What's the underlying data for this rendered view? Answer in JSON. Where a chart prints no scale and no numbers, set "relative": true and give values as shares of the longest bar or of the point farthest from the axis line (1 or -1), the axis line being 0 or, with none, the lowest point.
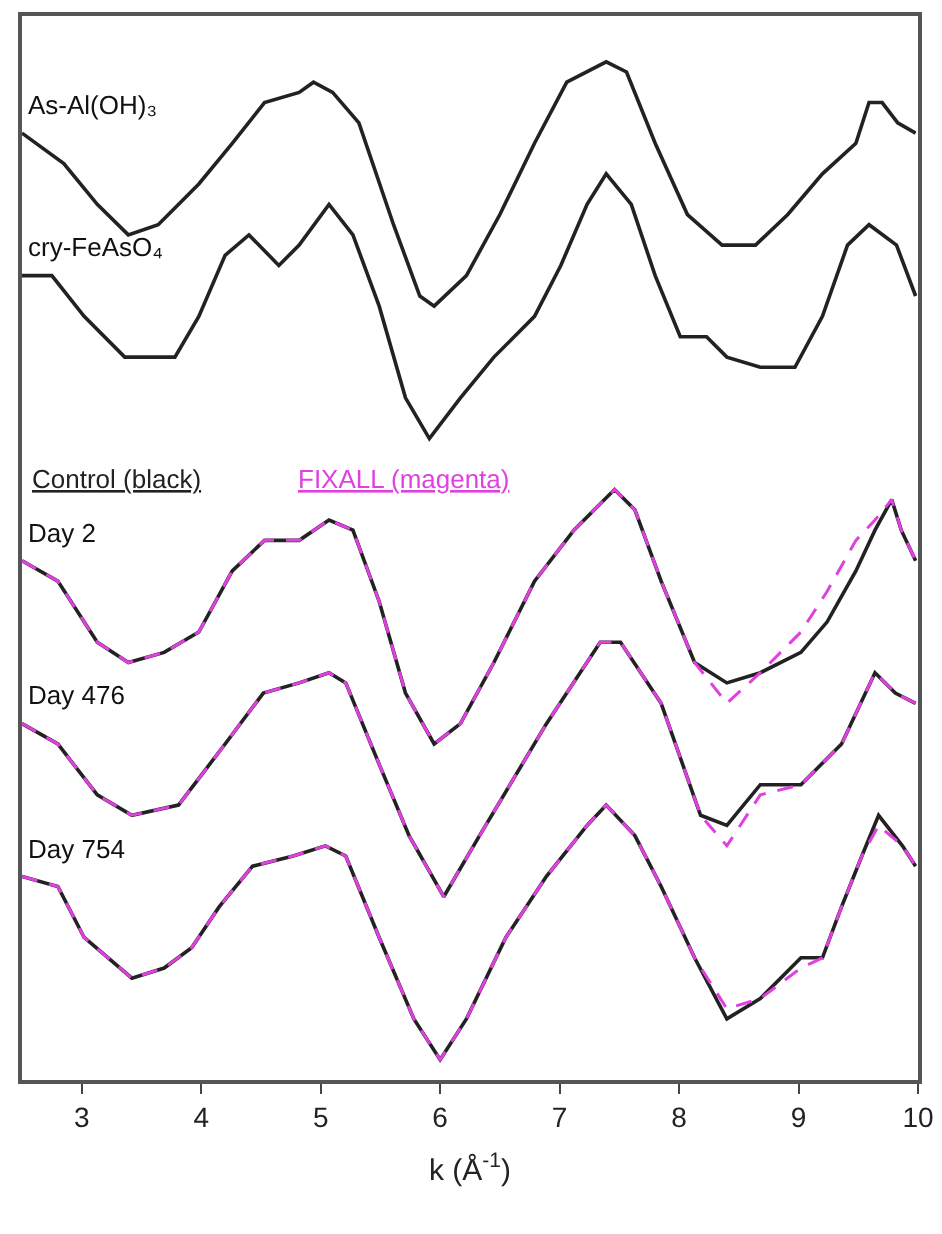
{
  "chart_data": {
    "type": "line",
    "relative": true,
    "xlabel": "k (Å$^{-1}$)",
    "xlim": [
      2.5,
      10
    ],
    "xticks": [
      3,
      4,
      5,
      6,
      7,
      8,
      9,
      10
    ],
    "grid": false,
    "legend": false,
    "annotations": [
      "Control (black)",
      "FIXALL (magenta)"
    ],
    "series": [
      {
        "name": "As-Al(OH)₃",
        "color": "#222222",
        "x": [
          2.5,
          2.85,
          3.13,
          3.39,
          3.64,
          3.98,
          4.26,
          4.53,
          4.82,
          4.94,
          5.1,
          5.32,
          5.61,
          5.83,
          5.95,
          6.22,
          6.5,
          6.79,
          7.06,
          7.39,
          7.56,
          7.8,
          8.07,
          8.36,
          8.64,
          8.91,
          9.2,
          9.48,
          9.59,
          9.7,
          9.83,
          9.98
        ],
        "values": [
          0.93,
          0.9,
          0.86,
          0.83,
          0.84,
          0.88,
          0.92,
          0.96,
          0.97,
          0.98,
          0.97,
          0.94,
          0.84,
          0.77,
          0.76,
          0.79,
          0.85,
          0.92,
          0.98,
          1.0,
          0.99,
          0.92,
          0.85,
          0.82,
          0.82,
          0.85,
          0.89,
          0.92,
          0.96,
          0.96,
          0.94,
          0.93
        ]
      },
      {
        "name": "cry-FeAsO₄",
        "color": "#222222",
        "x": [
          2.5,
          2.75,
          3.02,
          3.36,
          3.78,
          3.98,
          4.2,
          4.4,
          4.65,
          4.82,
          5.07,
          5.27,
          5.49,
          5.71,
          5.91,
          6.17,
          6.45,
          6.79,
          7.01,
          7.23,
          7.39,
          7.6,
          7.8,
          8.01,
          8.23,
          8.4,
          8.68,
          8.97,
          9.2,
          9.41,
          9.59,
          9.82,
          9.98
        ],
        "values": [
          0.79,
          0.79,
          0.75,
          0.71,
          0.71,
          0.75,
          0.81,
          0.83,
          0.8,
          0.82,
          0.86,
          0.83,
          0.76,
          0.67,
          0.63,
          0.67,
          0.71,
          0.75,
          0.8,
          0.86,
          0.89,
          0.86,
          0.79,
          0.73,
          0.73,
          0.71,
          0.7,
          0.7,
          0.75,
          0.82,
          0.84,
          0.82,
          0.77
        ]
      },
      {
        "name": "Day 2",
        "color": "#222222",
        "x": [
          2.5,
          2.8,
          3.13,
          3.39,
          3.69,
          3.98,
          4.26,
          4.53,
          4.82,
          5.07,
          5.27,
          5.49,
          5.71,
          5.95,
          6.17,
          6.45,
          6.79,
          7.12,
          7.46,
          7.63,
          7.85,
          8.13,
          8.4,
          8.68,
          9.02,
          9.24,
          9.48,
          9.64,
          9.78,
          9.86,
          9.98
        ],
        "values": [
          0.51,
          0.49,
          0.43,
          0.41,
          0.42,
          0.44,
          0.5,
          0.53,
          0.53,
          0.55,
          0.54,
          0.47,
          0.38,
          0.33,
          0.35,
          0.41,
          0.49,
          0.54,
          0.58,
          0.56,
          0.49,
          0.41,
          0.39,
          0.4,
          0.42,
          0.45,
          0.5,
          0.54,
          0.57,
          0.54,
          0.51
        ]
      },
      {
        "color": "#e040e0",
        "line_style": "dashed",
        "x": [
          2.5,
          2.8,
          3.13,
          3.39,
          3.69,
          3.98,
          4.26,
          4.53,
          4.82,
          5.07,
          5.27,
          5.49,
          5.71,
          5.95,
          6.17,
          6.45,
          6.79,
          7.12,
          7.46,
          7.63,
          7.85,
          8.13,
          8.4,
          8.68,
          9.02,
          9.24,
          9.48,
          9.64,
          9.78,
          9.86,
          9.98
        ],
        "values": [
          0.51,
          0.49,
          0.43,
          0.41,
          0.42,
          0.44,
          0.5,
          0.53,
          0.53,
          0.55,
          0.54,
          0.47,
          0.38,
          0.33,
          0.35,
          0.41,
          0.49,
          0.54,
          0.58,
          0.56,
          0.49,
          0.41,
          0.37,
          0.4,
          0.44,
          0.48,
          0.53,
          0.55,
          0.57,
          0.54,
          0.51
        ]
      },
      {
        "name": "Day 476",
        "color": "#222222",
        "x": [
          2.5,
          2.8,
          3.13,
          3.42,
          3.81,
          4.2,
          4.52,
          4.82,
          5.07,
          5.21,
          5.49,
          5.74,
          6.03,
          6.33,
          6.89,
          7.34,
          7.51,
          7.85,
          8.18,
          8.4,
          8.68,
          9.02,
          9.36,
          9.64,
          9.81,
          9.98
        ],
        "values": [
          0.35,
          0.33,
          0.28,
          0.26,
          0.27,
          0.33,
          0.38,
          0.39,
          0.4,
          0.39,
          0.31,
          0.24,
          0.18,
          0.24,
          0.35,
          0.43,
          0.43,
          0.37,
          0.26,
          0.25,
          0.29,
          0.29,
          0.33,
          0.4,
          0.38,
          0.37
        ]
      },
      {
        "color": "#e040e0",
        "line_style": "dashed",
        "x": [
          2.5,
          2.8,
          3.13,
          3.42,
          3.81,
          4.2,
          4.52,
          4.82,
          5.07,
          5.21,
          5.49,
          5.74,
          6.03,
          6.33,
          6.89,
          7.34,
          7.51,
          7.85,
          8.18,
          8.4,
          8.68,
          9.02,
          9.36,
          9.64,
          9.81,
          9.98
        ],
        "values": [
          0.35,
          0.33,
          0.28,
          0.26,
          0.27,
          0.33,
          0.38,
          0.39,
          0.4,
          0.39,
          0.31,
          0.24,
          0.18,
          0.24,
          0.35,
          0.43,
          0.43,
          0.37,
          0.26,
          0.23,
          0.28,
          0.29,
          0.33,
          0.4,
          0.38,
          0.37
        ]
      },
      {
        "name": "Day 754",
        "color": "#222222",
        "x": [
          2.5,
          2.8,
          3.02,
          3.42,
          3.69,
          3.92,
          4.15,
          4.43,
          4.77,
          5.04,
          5.21,
          5.49,
          5.78,
          6.0,
          6.22,
          6.55,
          6.89,
          7.23,
          7.39,
          7.63,
          7.85,
          8.13,
          8.4,
          8.68,
          9.02,
          9.2,
          9.36,
          9.53,
          9.67,
          9.87,
          9.98
        ],
        "values": [
          0.2,
          0.19,
          0.14,
          0.1,
          0.11,
          0.13,
          0.17,
          0.21,
          0.22,
          0.23,
          0.22,
          0.14,
          0.06,
          0.02,
          0.06,
          0.14,
          0.2,
          0.25,
          0.27,
          0.24,
          0.19,
          0.12,
          0.06,
          0.08,
          0.12,
          0.12,
          0.17,
          0.22,
          0.26,
          0.23,
          0.21
        ]
      },
      {
        "color": "#e040e0",
        "line_style": "dashed",
        "x": [
          2.5,
          2.8,
          3.02,
          3.42,
          3.69,
          3.92,
          4.15,
          4.43,
          4.77,
          5.04,
          5.21,
          5.49,
          5.78,
          6.0,
          6.22,
          6.55,
          6.89,
          7.23,
          7.39,
          7.63,
          7.85,
          8.13,
          8.4,
          8.68,
          9.02,
          9.2,
          9.36,
          9.53,
          9.67,
          9.87,
          9.98
        ],
        "values": [
          0.2,
          0.19,
          0.14,
          0.1,
          0.11,
          0.13,
          0.17,
          0.21,
          0.22,
          0.23,
          0.22,
          0.14,
          0.06,
          0.02,
          0.06,
          0.14,
          0.2,
          0.25,
          0.27,
          0.24,
          0.19,
          0.12,
          0.07,
          0.08,
          0.11,
          0.12,
          0.17,
          0.22,
          0.25,
          0.23,
          0.21
        ]
      }
    ]
  }
}
